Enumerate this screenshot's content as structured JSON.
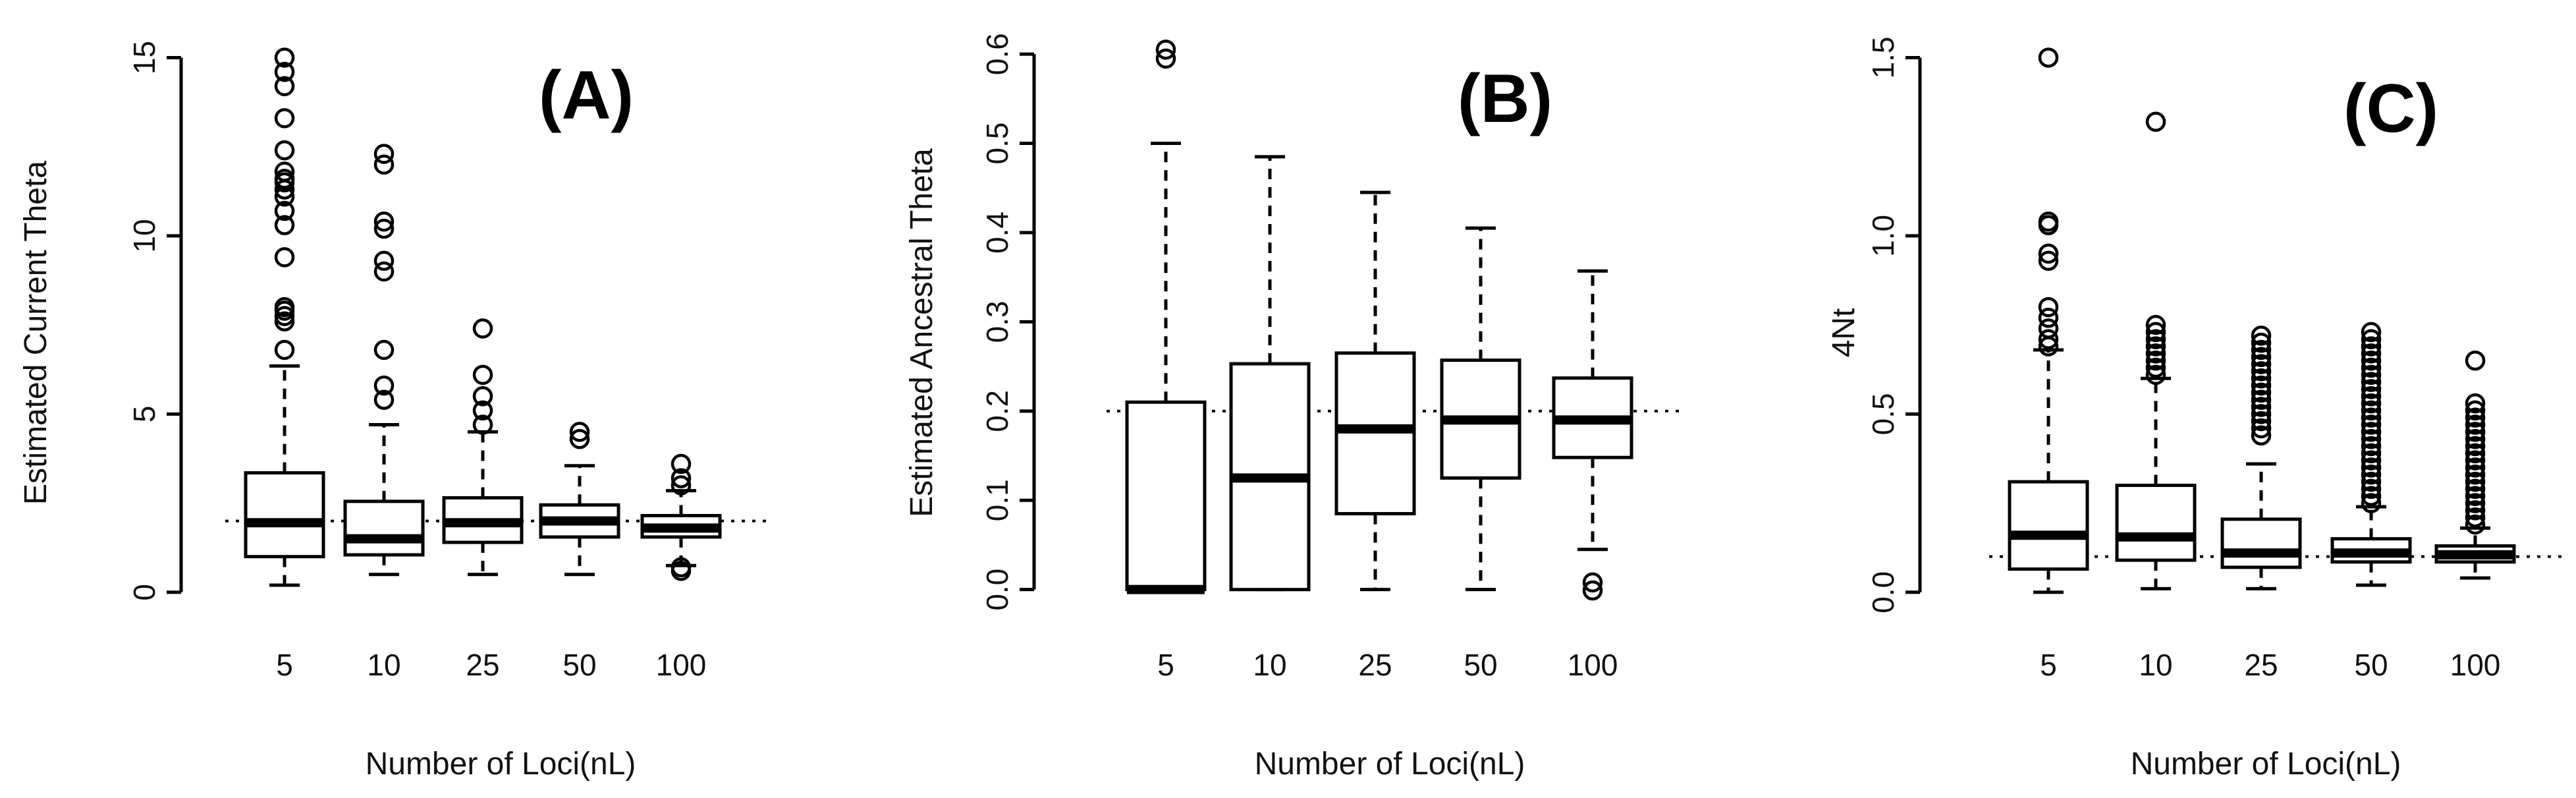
{
  "chart_data": [
    {
      "type": "box",
      "panel_label": "(A)",
      "xlabel": "Number of Loci(nL)",
      "ylabel": "Estimated Current Theta",
      "ylim": [
        -0.3,
        15.6
      ],
      "yticks": [
        0,
        5,
        10,
        15
      ],
      "ytick_labels": [
        "0",
        "5",
        "10",
        "15"
      ],
      "categories": [
        "5",
        "10",
        "25",
        "50",
        "100"
      ],
      "reference_line": 2.0,
      "boxes": [
        {
          "whisker_low": 0.2,
          "q1": 1.0,
          "median": 1.95,
          "q3": 3.35,
          "whisker_high": 6.35,
          "outliers": [
            6.8,
            7.6,
            7.75,
            7.9,
            8.0,
            9.4,
            10.3,
            10.7,
            11.1,
            11.3,
            11.5,
            11.6,
            11.8,
            12.4,
            13.3,
            14.2,
            14.6,
            15.0
          ]
        },
        {
          "whisker_low": 0.5,
          "q1": 1.05,
          "median": 1.5,
          "q3": 2.55,
          "whisker_high": 4.7,
          "outliers": [
            5.4,
            5.8,
            6.8,
            9.0,
            9.3,
            10.2,
            10.4,
            12.0,
            12.3
          ]
        },
        {
          "whisker_low": 0.5,
          "q1": 1.4,
          "median": 1.95,
          "q3": 2.65,
          "whisker_high": 4.5,
          "outliers": [
            4.7,
            5.1,
            5.5,
            6.1,
            7.4
          ]
        },
        {
          "whisker_low": 0.5,
          "q1": 1.55,
          "median": 2.0,
          "q3": 2.45,
          "whisker_high": 3.55,
          "outliers": [
            4.3,
            4.5
          ]
        },
        {
          "whisker_low": 0.75,
          "q1": 1.55,
          "median": 1.8,
          "q3": 2.15,
          "whisker_high": 2.85,
          "outliers": [
            0.6,
            0.7,
            3.0,
            3.2,
            3.6
          ]
        }
      ]
    },
    {
      "type": "box",
      "panel_label": "(B)",
      "xlabel": "Number of Loci(nL)",
      "ylabel": "Estimated Ancestral Theta",
      "ylim": [
        -0.015,
        0.62
      ],
      "yticks": [
        0.0,
        0.1,
        0.2,
        0.3,
        0.4,
        0.5,
        0.6
      ],
      "ytick_labels": [
        "0.0",
        "0.1",
        "0.2",
        "0.3",
        "0.4",
        "0.5",
        "0.6"
      ],
      "categories": [
        "5",
        "10",
        "25",
        "50",
        "100"
      ],
      "reference_line": 0.2,
      "boxes": [
        {
          "whisker_low": 0.0,
          "q1": 0.0,
          "median": 0.0,
          "q3": 0.21,
          "whisker_high": 0.5,
          "outliers": [
            0.595,
            0.605
          ]
        },
        {
          "whisker_low": 0.0,
          "q1": 0.0,
          "median": 0.125,
          "q3": 0.253,
          "whisker_high": 0.485,
          "outliers": []
        },
        {
          "whisker_low": 0.0,
          "q1": 0.085,
          "median": 0.18,
          "q3": 0.265,
          "whisker_high": 0.445,
          "outliers": []
        },
        {
          "whisker_low": 0.0,
          "q1": 0.125,
          "median": 0.19,
          "q3": 0.257,
          "whisker_high": 0.405,
          "outliers": []
        },
        {
          "whisker_low": 0.045,
          "q1": 0.148,
          "median": 0.19,
          "q3": 0.237,
          "whisker_high": 0.357,
          "outliers": [
            -0.001,
            0.008
          ]
        }
      ]
    },
    {
      "type": "box",
      "panel_label": "(C)",
      "xlabel": "Number of Loci(nL)",
      "ylabel": "4Nt",
      "ylim": [
        -0.03,
        1.56
      ],
      "yticks": [
        0.0,
        0.5,
        1.0,
        1.5
      ],
      "ytick_labels": [
        "0.0",
        "0.5",
        "1.0",
        "1.5"
      ],
      "categories": [
        "5",
        "10",
        "25",
        "50",
        "100"
      ],
      "reference_line": 0.1,
      "boxes": [
        {
          "whisker_low": 0.0,
          "q1": 0.065,
          "median": 0.16,
          "q3": 0.31,
          "whisker_high": 0.68,
          "outliers": [
            0.69,
            0.71,
            0.74,
            0.77,
            0.8,
            0.93,
            0.95,
            1.03,
            1.04,
            1.5
          ]
        },
        {
          "whisker_low": 0.01,
          "q1": 0.09,
          "median": 0.155,
          "q3": 0.3,
          "whisker_high": 0.6,
          "outliers": [
            0.61,
            0.63,
            0.65,
            0.67,
            0.69,
            0.71,
            0.73,
            0.75,
            1.32
          ]
        },
        {
          "whisker_low": 0.01,
          "q1": 0.07,
          "median": 0.11,
          "q3": 0.205,
          "whisker_high": 0.36,
          "outliers": [
            0.44,
            0.46,
            0.48,
            0.5,
            0.52,
            0.54,
            0.56,
            0.58,
            0.6,
            0.62,
            0.64,
            0.66,
            0.68,
            0.7,
            0.72
          ]
        },
        {
          "whisker_low": 0.02,
          "q1": 0.085,
          "median": 0.11,
          "q3": 0.15,
          "whisker_high": 0.24,
          "outliers": [
            0.25,
            0.27,
            0.29,
            0.31,
            0.33,
            0.35,
            0.37,
            0.39,
            0.41,
            0.43,
            0.45,
            0.47,
            0.49,
            0.51,
            0.53,
            0.55,
            0.57,
            0.59,
            0.61,
            0.63,
            0.65,
            0.67,
            0.69,
            0.71,
            0.73
          ]
        },
        {
          "whisker_low": 0.04,
          "q1": 0.085,
          "median": 0.105,
          "q3": 0.13,
          "whisker_high": 0.18,
          "outliers": [
            0.19,
            0.21,
            0.23,
            0.25,
            0.27,
            0.29,
            0.31,
            0.33,
            0.35,
            0.37,
            0.39,
            0.41,
            0.43,
            0.45,
            0.47,
            0.49,
            0.51,
            0.53,
            0.65
          ]
        }
      ]
    }
  ]
}
